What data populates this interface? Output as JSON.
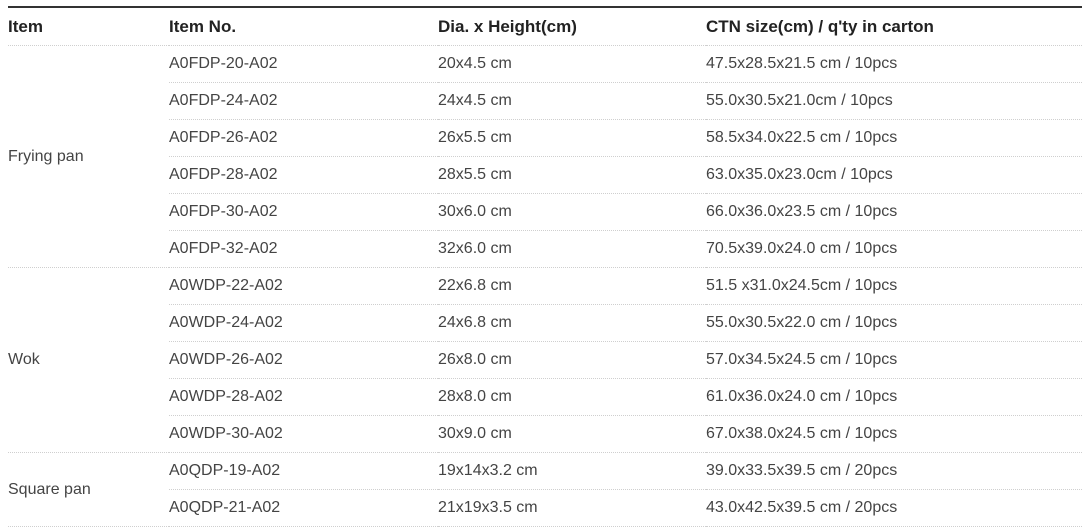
{
  "headers": [
    "Item",
    "Item No.",
    "Dia. x Height(cm)",
    "CTN size(cm) / q'ty in carton"
  ],
  "groups": [
    {
      "name": "Frying pan",
      "rows": [
        [
          "A0FDP-20-A02",
          "20x4.5 cm",
          "47.5x28.5x21.5 cm / 10pcs"
        ],
        [
          "A0FDP-24-A02",
          "24x4.5 cm",
          "55.0x30.5x21.0cm / 10pcs"
        ],
        [
          "A0FDP-26-A02",
          "26x5.5 cm",
          "58.5x34.0x22.5 cm / 10pcs"
        ],
        [
          "A0FDP-28-A02",
          "28x5.5 cm",
          "63.0x35.0x23.0cm / 10pcs"
        ],
        [
          "A0FDP-30-A02",
          "30x6.0 cm",
          "66.0x36.0x23.5 cm / 10pcs"
        ],
        [
          "A0FDP-32-A02",
          "32x6.0 cm",
          "70.5x39.0x24.0 cm / 10pcs"
        ]
      ]
    },
    {
      "name": "Wok",
      "rows": [
        [
          "A0WDP-22-A02",
          "22x6.8 cm",
          "51.5 x31.0x24.5cm / 10pcs"
        ],
        [
          "A0WDP-24-A02",
          "24x6.8 cm",
          "55.0x30.5x22.0 cm / 10pcs"
        ],
        [
          "A0WDP-26-A02",
          "26x8.0 cm",
          "57.0x34.5x24.5 cm / 10pcs"
        ],
        [
          "A0WDP-28-A02",
          "28x8.0 cm",
          "61.0x36.0x24.0 cm / 10pcs"
        ],
        [
          "A0WDP-30-A02",
          "30x9.0 cm",
          "67.0x38.0x24.5 cm / 10pcs"
        ]
      ]
    },
    {
      "name": "Square pan",
      "rows": [
        [
          "A0QDP-19-A02",
          "19x14x3.2 cm",
          "39.0x33.5x39.5 cm / 20pcs"
        ],
        [
          "A0QDP-21-A02",
          "21x19x3.5 cm",
          "43.0x42.5x39.5 cm / 20pcs"
        ]
      ]
    }
  ]
}
